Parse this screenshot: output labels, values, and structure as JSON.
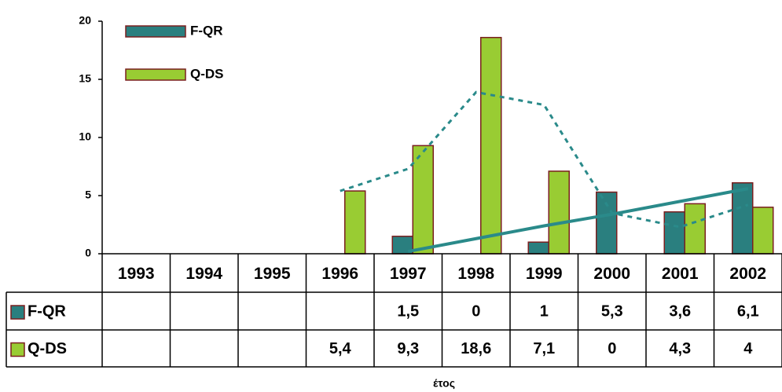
{
  "chart_data": {
    "type": "bar",
    "categories": [
      "1993",
      "1994",
      "1995",
      "1996",
      "1997",
      "1998",
      "1999",
      "2000",
      "2001",
      "2002"
    ],
    "series": [
      {
        "name": "F-QR",
        "color": "#2a7f7f",
        "values": [
          null,
          null,
          null,
          null,
          1.5,
          0,
          1,
          5.3,
          3.6,
          6.1
        ],
        "value_labels": [
          null,
          null,
          null,
          null,
          "1,5",
          "0",
          "1",
          "5,3",
          "3,6",
          "6,1"
        ]
      },
      {
        "name": "Q-DS",
        "color": "#99cc33",
        "values": [
          null,
          null,
          null,
          5.4,
          9.3,
          18.6,
          7.1,
          0,
          4.3,
          4
        ],
        "value_labels": [
          null,
          null,
          null,
          "5,4",
          "9,3",
          "18,6",
          "7,1",
          "0",
          "4,3",
          "4"
        ]
      }
    ],
    "trend_lines": [
      {
        "color": "#2a8a8a",
        "dashed": false,
        "values": [
          null,
          null,
          null,
          null,
          0.2,
          1.3,
          2.4,
          3.4,
          4.5,
          5.6
        ]
      },
      {
        "color": "#2a8a8a",
        "dashed": true,
        "values": [
          null,
          null,
          null,
          5.4,
          7.3,
          13.9,
          12.8,
          3.5,
          2.3,
          4.2
        ]
      }
    ],
    "xlabel": "έτος",
    "ylim": [
      0,
      20
    ],
    "yticks": [
      0,
      5,
      10,
      15,
      20
    ],
    "grid": false
  }
}
